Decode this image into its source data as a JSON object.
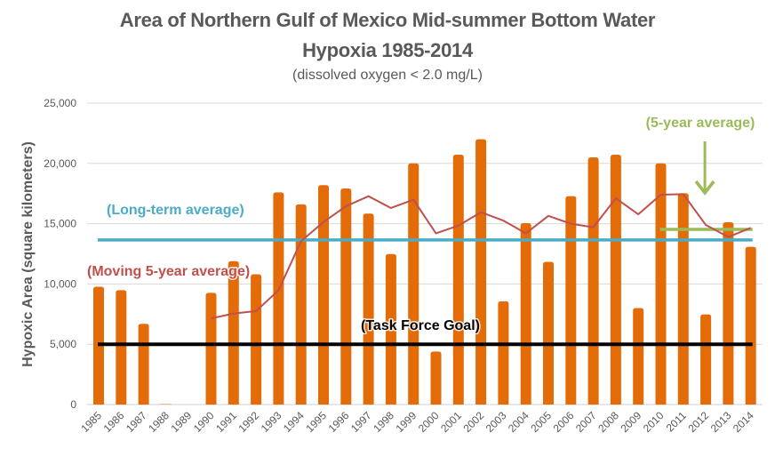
{
  "chart_data": {
    "type": "bar",
    "title": "Area of Northern Gulf of Mexico Mid-summer Bottom Water",
    "title_line2": "Hypoxia 1985-2014",
    "subtitle": "(dissolved oxygen < 2.0 mg/L)",
    "xlabel": "",
    "ylabel": "Hypoxic Area (square kilometers)",
    "ylim": [
      0,
      25000
    ],
    "yticks": [
      0,
      5000,
      10000,
      15000,
      20000,
      25000
    ],
    "ytick_labels": [
      "0",
      "5,000",
      "10,000",
      "15,000",
      "20,000",
      "25,000"
    ],
    "grid": true,
    "legend": "none",
    "categories": [
      "1985",
      "1986",
      "1987",
      "1988",
      "1989",
      "1990",
      "1991",
      "1992",
      "1993",
      "1994",
      "1995",
      "1996",
      "1997",
      "1998",
      "1999",
      "2000",
      "2001",
      "2002",
      "2003",
      "2004",
      "2005",
      "2006",
      "2007",
      "2008",
      "2009",
      "2010",
      "2011",
      "2012",
      "2013",
      "2014"
    ],
    "series": [
      {
        "name": "Hypoxic Area",
        "type": "bar",
        "color": "#E36C09",
        "values": [
          9770,
          9490,
          6690,
          40,
          null,
          9260,
          11890,
          10800,
          17600,
          16600,
          18200,
          17920,
          15840,
          12480,
          20000,
          4400,
          20720,
          22000,
          8560,
          15040,
          11840,
          17280,
          20500,
          20720,
          8000,
          20000,
          17520,
          7480,
          15120,
          13080
        ]
      },
      {
        "name": "Moving 5-year average",
        "type": "line",
        "color": "#C0504D",
        "values": [
          null,
          null,
          null,
          null,
          null,
          7140,
          7550,
          7750,
          9480,
          13540,
          15140,
          16450,
          17280,
          16300,
          16990,
          14200,
          14840,
          15950,
          15260,
          14200,
          15650,
          15000,
          14700,
          17110,
          15780,
          17400,
          17450,
          14900,
          13900,
          14650
        ]
      }
    ],
    "reference_lines": [
      {
        "name": "Long-term average",
        "value": 13650,
        "from": "1985",
        "to": "2014",
        "color": "#4BACC6"
      },
      {
        "name": "Task Force Goal",
        "value": 5000,
        "from": "1985",
        "to": "2014",
        "color": "#000000"
      },
      {
        "name": "5-year average",
        "value": 14530,
        "from": "2010",
        "to": "2014",
        "color": "#9BBB59"
      }
    ],
    "annotations": [
      {
        "text": "(Long-term average)",
        "color": "#4BACC6"
      },
      {
        "text": "(Moving 5-year average)",
        "color": "#C0504D"
      },
      {
        "text": "(Task Force Goal)",
        "color": "#000000"
      },
      {
        "text": "(5-year average)",
        "color": "#9BBB59",
        "arrow_to": "2012"
      }
    ]
  }
}
